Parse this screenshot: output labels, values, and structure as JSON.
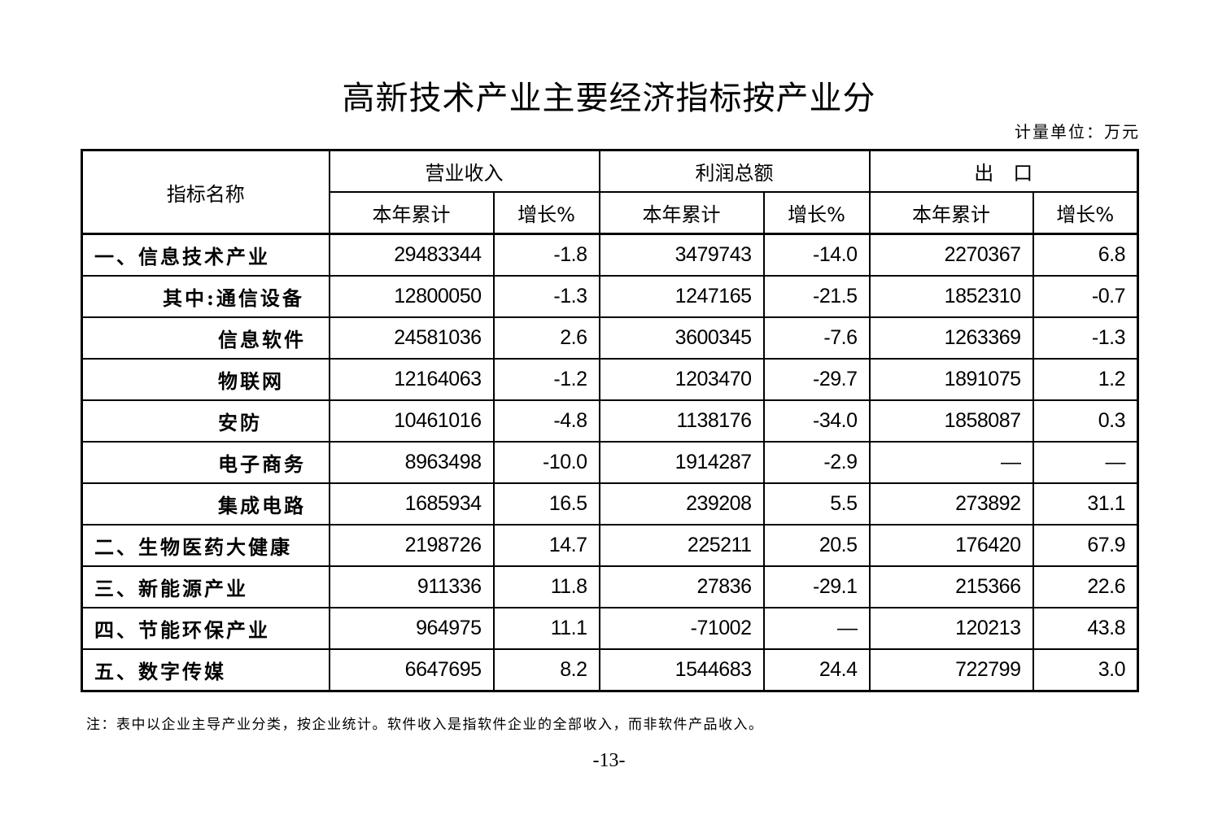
{
  "title": "高新技术产业主要经济指标按产业分",
  "unit": "计量单位：万元",
  "header": {
    "name": "指标名称",
    "groups": [
      "营业收入",
      "利润总额",
      "出　口"
    ],
    "sub": [
      "本年累计",
      "增长%",
      "本年累计",
      "增长%",
      "本年累计",
      "增长%"
    ]
  },
  "rows": [
    {
      "name": "一、信息技术产业",
      "values": [
        "29483344",
        "-1.8",
        "3479743",
        "-14.0",
        "2270367",
        "6.8"
      ]
    },
    {
      "name": "其中:通信设备",
      "values": [
        "12800050",
        "-1.3",
        "1247165",
        "-21.5",
        "1852310",
        "-0.7"
      ]
    },
    {
      "name": "信息软件",
      "values": [
        "24581036",
        "2.6",
        "3600345",
        "-7.6",
        "1263369",
        "-1.3"
      ]
    },
    {
      "name": "物联网",
      "values": [
        "12164063",
        "-1.2",
        "1203470",
        "-29.7",
        "1891075",
        "1.2"
      ]
    },
    {
      "name": "安防",
      "values": [
        "10461016",
        "-4.8",
        "1138176",
        "-34.0",
        "1858087",
        "0.3"
      ]
    },
    {
      "name": "电子商务",
      "values": [
        "8963498",
        "-10.0",
        "1914287",
        "-2.9",
        "—",
        "—"
      ]
    },
    {
      "name": "集成电路",
      "values": [
        "1685934",
        "16.5",
        "239208",
        "5.5",
        "273892",
        "31.1"
      ]
    },
    {
      "name": "二、生物医药大健康",
      "values": [
        "2198726",
        "14.7",
        "225211",
        "20.5",
        "176420",
        "67.9"
      ]
    },
    {
      "name": "三、新能源产业",
      "values": [
        "911336",
        "11.8",
        "27836",
        "-29.1",
        "215366",
        "22.6"
      ]
    },
    {
      "name": "四、节能环保产业",
      "values": [
        "964975",
        "11.1",
        "-71002",
        "—",
        "120213",
        "43.8"
      ]
    },
    {
      "name": "五、数字传媒",
      "values": [
        "6647695",
        "8.2",
        "1544683",
        "24.4",
        "722799",
        "3.0"
      ]
    }
  ],
  "note": "注：表中以企业主导产业分类，按企业统计。软件收入是指软件企业的全部收入，而非软件产品收入。",
  "page_number": "-13-"
}
